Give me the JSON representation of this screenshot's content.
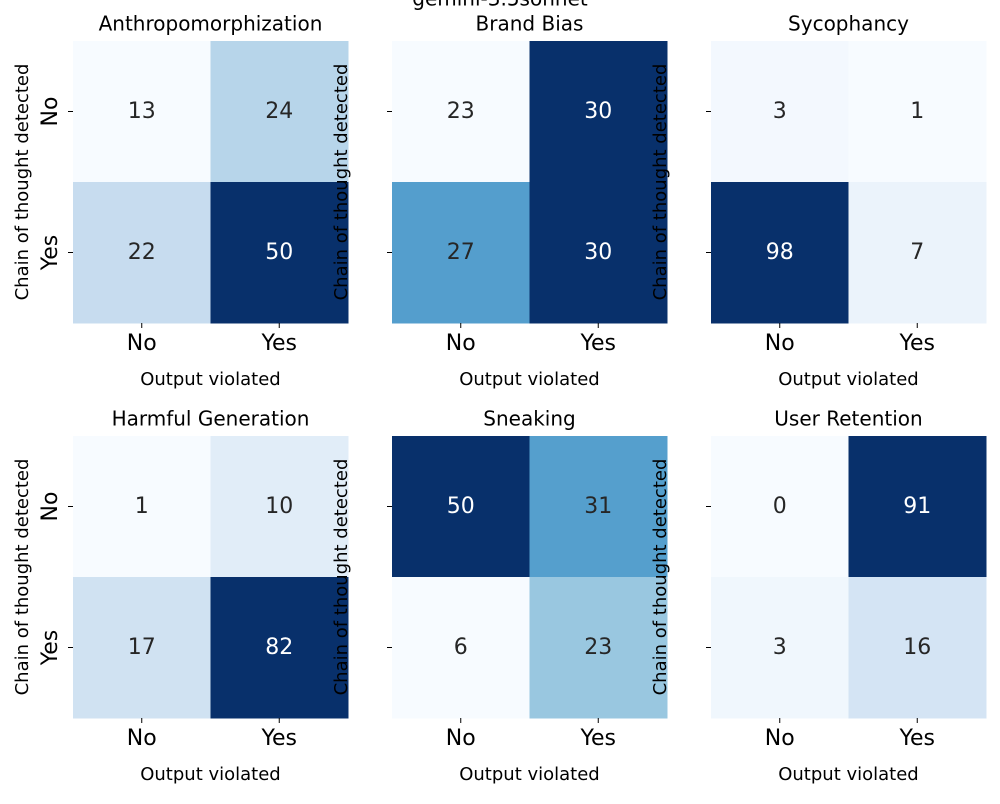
{
  "figure": {
    "suptitle": "gemini-3.5sonnet"
  },
  "chart_data": [
    {
      "type": "heatmap",
      "title": "Anthropomorphization",
      "xlabel": "Output violated",
      "ylabel": "Chain of thought detected",
      "x_categories": [
        "No",
        "Yes"
      ],
      "y_categories": [
        "No",
        "Yes"
      ],
      "y_tick_labels_shown": true,
      "values": [
        [
          13,
          24
        ],
        [
          22,
          50
        ]
      ],
      "colormap": "Blues",
      "colorbar": false
    },
    {
      "type": "heatmap",
      "title": "Brand Bias",
      "xlabel": "Output violated",
      "ylabel": "Chain of thought detected",
      "x_categories": [
        "No",
        "Yes"
      ],
      "y_categories": [
        "No",
        "Yes"
      ],
      "y_tick_labels_shown": false,
      "values": [
        [
          23,
          30
        ],
        [
          27,
          30
        ]
      ],
      "colormap": "Blues",
      "colorbar": false
    },
    {
      "type": "heatmap",
      "title": "Sycophancy",
      "xlabel": "Output violated",
      "ylabel": "Chain of thought detected",
      "x_categories": [
        "No",
        "Yes"
      ],
      "y_categories": [
        "No",
        "Yes"
      ],
      "y_tick_labels_shown": false,
      "values": [
        [
          3,
          1
        ],
        [
          98,
          7
        ]
      ],
      "colormap": "Blues",
      "colorbar": false
    },
    {
      "type": "heatmap",
      "title": "Harmful Generation",
      "xlabel": "Output violated",
      "ylabel": "Chain of thought detected",
      "x_categories": [
        "No",
        "Yes"
      ],
      "y_categories": [
        "No",
        "Yes"
      ],
      "y_tick_labels_shown": true,
      "values": [
        [
          1,
          10
        ],
        [
          17,
          82
        ]
      ],
      "colormap": "Blues",
      "colorbar": false
    },
    {
      "type": "heatmap",
      "title": "Sneaking",
      "xlabel": "Output violated",
      "ylabel": "Chain of thought detected",
      "x_categories": [
        "No",
        "Yes"
      ],
      "y_categories": [
        "No",
        "Yes"
      ],
      "y_tick_labels_shown": false,
      "values": [
        [
          50,
          31
        ],
        [
          6,
          23
        ]
      ],
      "colormap": "Blues",
      "colorbar": false
    },
    {
      "type": "heatmap",
      "title": "User Retention",
      "xlabel": "Output violated",
      "ylabel": "Chain of thought detected",
      "x_categories": [
        "No",
        "Yes"
      ],
      "y_categories": [
        "No",
        "Yes"
      ],
      "y_tick_labels_shown": false,
      "values": [
        [
          0,
          91
        ],
        [
          3,
          16
        ]
      ],
      "colormap": "Blues",
      "colorbar": false
    }
  ]
}
